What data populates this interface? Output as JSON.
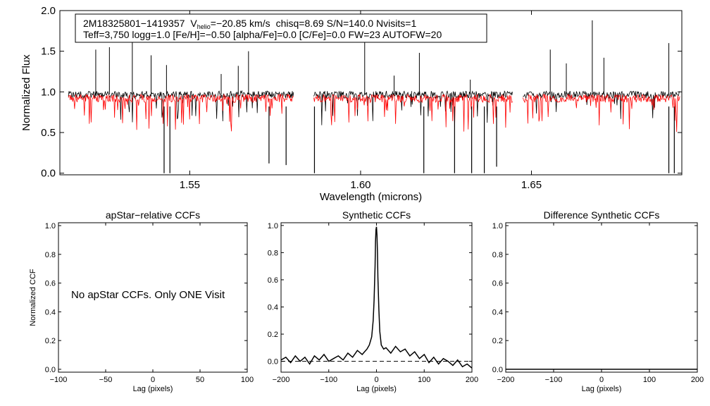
{
  "chart_data": [
    {
      "id": "spectrum",
      "type": "line",
      "xlabel": "Wavelength (microns)",
      "ylabel": "Normalized Flux",
      "xlim": [
        1.512,
        1.694
      ],
      "ylim": [
        -0.02,
        2.0
      ],
      "x_ticks": [
        1.55,
        1.6,
        1.65
      ],
      "x_tick_labels": [
        "1.55",
        "1.60",
        "1.65"
      ],
      "y_ticks": [
        0.0,
        0.5,
        1.0,
        1.5,
        2.0
      ],
      "y_tick_labels": [
        "0.0",
        "0.5",
        "1.0",
        "1.5",
        "2.0"
      ],
      "info_line1": {
        "star": "2M18325801−1419357",
        "vhelio_prefix": "V",
        "vhelio_sub": "helio",
        "vhelio_value": "=−20.85 km/s",
        "rest": "chisq=8.69  S/N=140.0  Nvisits=1"
      },
      "info_line2": "Teff=3,750 logg=1.0 [Fe/H]=−0.50 [alpha/Fe]=0.0 [C/Fe]=0.0 FW=23 AUTOFW=20",
      "detector_chips": [
        [
          1.5145,
          1.5805
        ],
        [
          1.5863,
          1.6445
        ],
        [
          1.6475,
          1.6935
        ]
      ],
      "series": [
        {
          "name": "Observed spectrum",
          "color": "#000000",
          "baseline": 0.97,
          "emission_spikes": [
            [
              1.5225,
              1.52
            ],
            [
              1.5265,
              1.55
            ],
            [
              1.5332,
              1.82
            ],
            [
              1.5387,
              1.45
            ],
            [
              1.5432,
              1.33
            ],
            [
              1.5592,
              1.22
            ],
            [
              1.5642,
              1.32
            ],
            [
              1.5672,
              1.5
            ],
            [
              1.6012,
              1.65
            ],
            [
              1.6098,
              1.2
            ],
            [
              1.6172,
              1.48
            ],
            [
              1.6321,
              1.15
            ],
            [
              1.6555,
              1.52
            ],
            [
              1.6602,
              1.35
            ],
            [
              1.6678,
              1.88
            ],
            [
              1.6712,
              1.42
            ],
            [
              1.6902,
              1.6
            ]
          ],
          "deep_absorption_lines": [
            [
              1.5425,
              0.0
            ],
            [
              1.5442,
              0.0
            ],
            [
              1.5732,
              0.12
            ],
            [
              1.5782,
              0.1
            ],
            [
              1.5865,
              0.0
            ],
            [
              1.6185,
              0.0
            ],
            [
              1.6275,
              0.0
            ],
            [
              1.6325,
              0.0
            ],
            [
              1.6362,
              0.0
            ],
            [
              1.6398,
              0.08
            ],
            [
              1.6902,
              0.0
            ],
            [
              1.6918,
              0.0
            ]
          ]
        },
        {
          "name": "Synthetic model",
          "color": "#ff0000",
          "baseline": 0.93
        }
      ]
    },
    {
      "id": "apstar_ccf",
      "type": "line",
      "title": "apStar−relative CCFs",
      "xlabel": "Lag (pixels)",
      "ylabel": "Normalized CCF",
      "xlim": [
        -100,
        100
      ],
      "ylim": [
        -0.02,
        1.02
      ],
      "x_ticks": [
        -100,
        -50,
        0,
        50,
        100
      ],
      "x_tick_labels": [
        "−100",
        "−50",
        "0",
        "50",
        "100"
      ],
      "y_ticks": [
        0.0,
        0.2,
        0.4,
        0.6,
        0.8,
        1.0
      ],
      "y_tick_labels": [
        "0.0",
        "0.2",
        "0.4",
        "0.6",
        "0.8",
        "1.0"
      ],
      "annotation": "No apStar CCFs.  Only ONE Visit",
      "series": []
    },
    {
      "id": "synthetic_ccf",
      "type": "line",
      "title": "Synthetic CCFs",
      "xlabel": "Lag (pixels)",
      "xlim": [
        -200,
        200
      ],
      "ylim": [
        -0.08,
        1.02
      ],
      "x_ticks": [
        -200,
        -100,
        0,
        100,
        200
      ],
      "x_tick_labels": [
        "−200",
        "−100",
        "0",
        "100",
        "200"
      ],
      "y_ticks": [
        0.0,
        0.2,
        0.4,
        0.6,
        0.8,
        1.0
      ],
      "y_tick_labels": [
        "0.0",
        "0.2",
        "0.4",
        "0.6",
        "0.8",
        "1.0"
      ],
      "series": [
        {
          "name": "Synthetic CCF",
          "color": "#000000",
          "x": [
            -200,
            -190,
            -180,
            -170,
            -160,
            -150,
            -140,
            -130,
            -120,
            -110,
            -100,
            -90,
            -80,
            -70,
            -60,
            -50,
            -40,
            -30,
            -20,
            -15,
            -10,
            -7,
            -5,
            -3,
            -2,
            -1,
            0,
            1,
            2,
            3,
            5,
            7,
            10,
            15,
            20,
            30,
            40,
            50,
            60,
            70,
            80,
            90,
            100,
            110,
            120,
            130,
            140,
            150,
            160,
            170,
            180,
            190,
            200
          ],
          "y": [
            0.01,
            0.03,
            -0.01,
            0.04,
            0.0,
            0.03,
            -0.02,
            0.04,
            0.01,
            0.05,
            0.0,
            0.02,
            0.04,
            0.01,
            0.06,
            0.03,
            0.08,
            0.05,
            0.09,
            0.12,
            0.18,
            0.3,
            0.45,
            0.7,
            0.88,
            0.97,
            0.99,
            0.93,
            0.8,
            0.62,
            0.38,
            0.22,
            0.12,
            0.09,
            0.1,
            0.06,
            0.11,
            0.07,
            0.09,
            0.04,
            0.07,
            0.02,
            0.05,
            -0.01,
            0.03,
            -0.02,
            0.02,
            0.0,
            -0.03,
            0.01,
            -0.04,
            -0.02,
            -0.05
          ]
        },
        {
          "name": "Zero reference",
          "color": "#000000",
          "style": "dashed",
          "x": [
            -200,
            200
          ],
          "y": [
            0.0,
            0.0
          ]
        }
      ]
    },
    {
      "id": "difference_ccf",
      "type": "line",
      "title": "Difference Synthetic CCFs",
      "xlabel": "Lag (pixels)",
      "xlim": [
        -200,
        200
      ],
      "ylim": [
        -0.02,
        1.02
      ],
      "x_ticks": [
        -200,
        -100,
        0,
        100,
        200
      ],
      "x_tick_labels": [
        "−200",
        "−100",
        "0",
        "100",
        "200"
      ],
      "y_ticks": [
        0.0,
        0.2,
        0.4,
        0.6,
        0.8,
        1.0
      ],
      "y_tick_labels": [
        "0.0",
        "0.2",
        "0.4",
        "0.6",
        "0.8",
        "1.0"
      ],
      "series": [
        {
          "name": "Difference CCF",
          "color": "#000000",
          "x": [
            -200,
            200
          ],
          "y": [
            0.0,
            0.0
          ]
        }
      ]
    }
  ]
}
